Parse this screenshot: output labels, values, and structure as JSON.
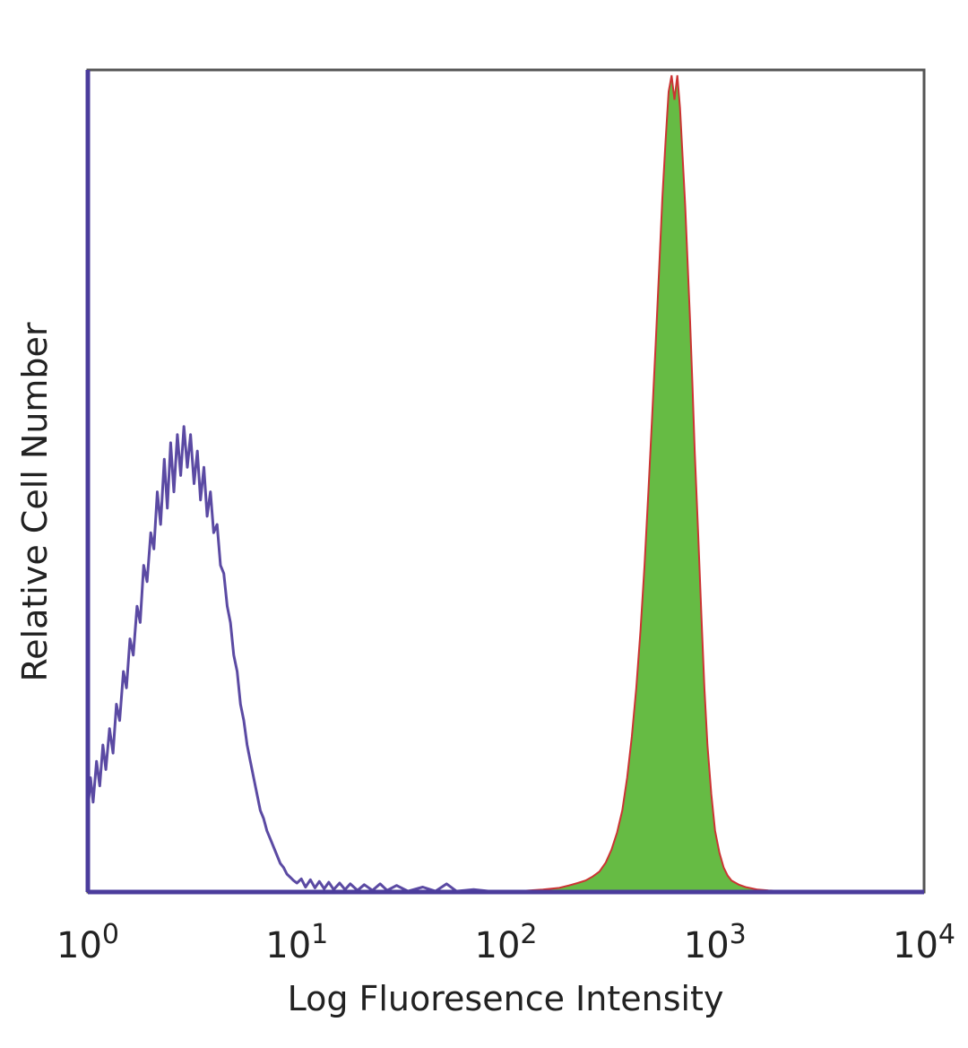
{
  "chart_data": {
    "type": "area",
    "xlabel": "Log Fluoresence Intensity",
    "ylabel": "Relative Cell Number",
    "x_scale": "log",
    "xlim": [
      1,
      10000
    ],
    "ylim": [
      0,
      100
    ],
    "grid": false,
    "legend": "none",
    "x_ticks": [
      {
        "base": "10",
        "exp": "0",
        "value": 1
      },
      {
        "base": "10",
        "exp": "1",
        "value": 10
      },
      {
        "base": "10",
        "exp": "2",
        "value": 100
      },
      {
        "base": "10",
        "exp": "3",
        "value": 1000
      },
      {
        "base": "10",
        "exp": "4",
        "value": 10000
      }
    ],
    "series": [
      {
        "style": "outline",
        "color": "#5b4aa3",
        "points": [
          [
            1.0,
            10
          ],
          [
            1.03,
            14
          ],
          [
            1.06,
            11
          ],
          [
            1.1,
            16
          ],
          [
            1.14,
            13
          ],
          [
            1.18,
            18
          ],
          [
            1.22,
            15
          ],
          [
            1.27,
            20
          ],
          [
            1.32,
            17
          ],
          [
            1.37,
            23
          ],
          [
            1.42,
            21
          ],
          [
            1.48,
            27
          ],
          [
            1.53,
            25
          ],
          [
            1.59,
            31
          ],
          [
            1.65,
            29
          ],
          [
            1.72,
            35
          ],
          [
            1.78,
            33
          ],
          [
            1.85,
            40
          ],
          [
            1.92,
            38
          ],
          [
            2.0,
            44
          ],
          [
            2.07,
            42
          ],
          [
            2.15,
            49
          ],
          [
            2.23,
            45
          ],
          [
            2.32,
            53
          ],
          [
            2.4,
            47
          ],
          [
            2.49,
            55
          ],
          [
            2.58,
            49
          ],
          [
            2.68,
            56
          ],
          [
            2.78,
            51
          ],
          [
            2.88,
            57
          ],
          [
            2.99,
            52
          ],
          [
            3.1,
            56
          ],
          [
            3.22,
            50
          ],
          [
            3.34,
            54
          ],
          [
            3.46,
            48
          ],
          [
            3.59,
            52
          ],
          [
            3.72,
            46
          ],
          [
            3.86,
            49
          ],
          [
            4.0,
            44
          ],
          [
            4.15,
            45
          ],
          [
            4.31,
            40
          ],
          [
            4.47,
            39
          ],
          [
            4.64,
            35
          ],
          [
            4.81,
            33
          ],
          [
            4.99,
            29
          ],
          [
            5.18,
            27
          ],
          [
            5.37,
            23
          ],
          [
            5.57,
            21
          ],
          [
            5.78,
            18
          ],
          [
            5.99,
            16
          ],
          [
            6.21,
            14
          ],
          [
            6.44,
            12
          ],
          [
            6.68,
            10
          ],
          [
            6.93,
            9
          ],
          [
            7.19,
            7.5
          ],
          [
            7.46,
            6.5
          ],
          [
            7.74,
            5.5
          ],
          [
            8.03,
            4.5
          ],
          [
            8.33,
            3.5
          ],
          [
            8.64,
            3
          ],
          [
            8.96,
            2.2
          ],
          [
            9.3,
            1.8
          ],
          [
            9.64,
            1.4
          ],
          [
            10.0,
            1.1
          ],
          [
            10.5,
            1.6
          ],
          [
            11.0,
            0.6
          ],
          [
            11.6,
            1.5
          ],
          [
            12.2,
            0.5
          ],
          [
            12.8,
            1.3
          ],
          [
            13.5,
            0.4
          ],
          [
            14.2,
            1.2
          ],
          [
            15.0,
            0.3
          ],
          [
            16.0,
            1.1
          ],
          [
            17.0,
            0.3
          ],
          [
            18.0,
            1.0
          ],
          [
            19.5,
            0.2
          ],
          [
            21.0,
            0.9
          ],
          [
            23.0,
            0.2
          ],
          [
            25.0,
            1.0
          ],
          [
            27.0,
            0.2
          ],
          [
            30.0,
            0.8
          ],
          [
            34.0,
            0.1
          ],
          [
            40.0,
            0.6
          ],
          [
            46.0,
            0.1
          ],
          [
            52.0,
            1.0
          ],
          [
            58.0,
            0.1
          ],
          [
            70.0,
            0.3
          ],
          [
            90.0,
            0
          ],
          [
            10000,
            0
          ]
        ]
      },
      {
        "style": "filled",
        "fill": "#66bb44",
        "color": "#cc3333",
        "points": [
          [
            1.0,
            0
          ],
          [
            100,
            0
          ],
          [
            150,
            0.3
          ],
          [
            180,
            0.5
          ],
          [
            200,
            0.8
          ],
          [
            220,
            1.1
          ],
          [
            240,
            1.4
          ],
          [
            260,
            1.9
          ],
          [
            280,
            2.5
          ],
          [
            300,
            3.6
          ],
          [
            320,
            5.2
          ],
          [
            340,
            7.3
          ],
          [
            360,
            10
          ],
          [
            380,
            14
          ],
          [
            400,
            19
          ],
          [
            420,
            25
          ],
          [
            440,
            32
          ],
          [
            460,
            40
          ],
          [
            480,
            49
          ],
          [
            500,
            58
          ],
          [
            520,
            67
          ],
          [
            540,
            76
          ],
          [
            560,
            85
          ],
          [
            580,
            92
          ],
          [
            600,
            98
          ],
          [
            620,
            100
          ],
          [
            640,
            97
          ],
          [
            660,
            100
          ],
          [
            680,
            96
          ],
          [
            700,
            90
          ],
          [
            720,
            84
          ],
          [
            740,
            77
          ],
          [
            760,
            70
          ],
          [
            780,
            62
          ],
          [
            800,
            54
          ],
          [
            830,
            44
          ],
          [
            860,
            34
          ],
          [
            890,
            25
          ],
          [
            920,
            18
          ],
          [
            960,
            12
          ],
          [
            1000,
            7.5
          ],
          [
            1050,
            4.8
          ],
          [
            1100,
            3
          ],
          [
            1150,
            2
          ],
          [
            1200,
            1.4
          ],
          [
            1300,
            0.9
          ],
          [
            1400,
            0.6
          ],
          [
            1600,
            0.3
          ],
          [
            1800,
            0.2
          ],
          [
            2200,
            0.1
          ],
          [
            2600,
            0
          ],
          [
            10000,
            0
          ]
        ]
      }
    ]
  }
}
